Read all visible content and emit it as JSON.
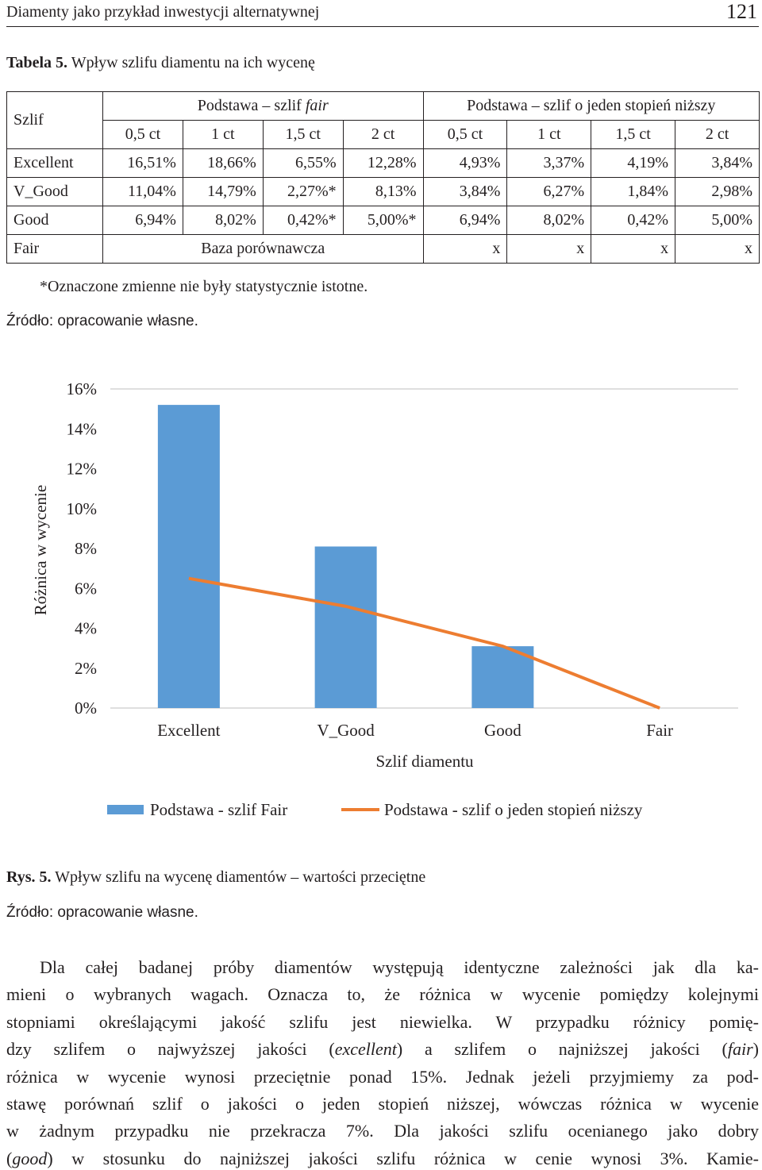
{
  "header": {
    "title": "Diamenty jako przykład inwestycji alternatywnej",
    "page": "121"
  },
  "table": {
    "label": "Tabela 5.",
    "caption": "Wpływ szlifu diamentu na ich wycenę",
    "corner": "Szlif",
    "groups": [
      {
        "text": "Podstawa – szlif ",
        "italic": "fair"
      },
      {
        "text": "Podstawa – szlif o jeden stopień niższy"
      }
    ],
    "columns": [
      "0,5 ct",
      "1 ct",
      "1,5 ct",
      "2 ct",
      "0,5 ct",
      "1 ct",
      "1,5 ct",
      "2 ct"
    ],
    "rows": [
      [
        "Excellent",
        "16,51%",
        "18,66%",
        "6,55%",
        "12,28%",
        "4,93%",
        "3,37%",
        "4,19%",
        "3,84%"
      ],
      [
        "V_Good",
        "11,04%",
        "14,79%",
        "2,27%*",
        "8,13%",
        "3,84%",
        "6,27%",
        "1,84%",
        "2,98%"
      ],
      [
        "Good",
        "6,94%",
        "8,02%",
        "0,42%*",
        "5,00%*",
        "6,94%",
        "8,02%",
        "0,42%",
        "5,00%"
      ],
      [
        "Fair",
        "Baza porównawcza",
        "x",
        "x",
        "x",
        "x"
      ]
    ],
    "note": "*Oznaczone zmienne nie były statystycznie istotne.",
    "source": "Źródło: opracowanie własne."
  },
  "chart_data": {
    "type": "bar",
    "categories": [
      "Excellent",
      "V_Good",
      "Good",
      "Fair"
    ],
    "x_label": "Szlif diamentu",
    "y_label": "Różnica w wycenie",
    "series": [
      {
        "name": "Podstawa - szlif Fair",
        "type": "bar",
        "color": "#5b9bd5",
        "values": [
          15.2,
          8.1,
          3.1,
          0
        ]
      },
      {
        "name": "Podstawa - szlif o jeden stopień niższy",
        "type": "line",
        "color": "#ed7d31",
        "values": [
          6.5,
          5.1,
          3.1,
          0
        ]
      }
    ],
    "ylim": [
      0,
      16
    ],
    "yticks": [
      {
        "value": 0,
        "label": "0%"
      },
      {
        "value": 2,
        "label": "2%"
      },
      {
        "value": 4,
        "label": "4%"
      },
      {
        "value": 6,
        "label": "6%"
      },
      {
        "value": 8,
        "label": "8%"
      },
      {
        "value": 10,
        "label": "10%"
      },
      {
        "value": 12,
        "label": "12%"
      },
      {
        "value": 14,
        "label": "14%"
      },
      {
        "value": 16,
        "label": "16%"
      }
    ],
    "legend": "bottom"
  },
  "figure": {
    "label": "Rys. 5.",
    "caption": "Wpływ szlifu na wycenę diamentów – wartości przeciętne",
    "source": "Źródło: opracowanie własne."
  },
  "paragraph": {
    "lines": [
      [
        {
          "text": "Dla całej badanej próby diamentów występują identyczne zależności jak dla ka-"
        }
      ],
      [
        {
          "text": "mieni o wybranych wagach. Oznacza to, że różnica w wycenie pomiędzy kolejnymi"
        }
      ],
      [
        {
          "text": "stopniami określającymi jakość szlifu jest niewielka. W przypadku różnicy pomię-"
        }
      ],
      [
        {
          "text": "dzy szlifem o najwyższej jakości ("
        },
        {
          "italic": "excellent"
        },
        {
          "text": ") a szlifem o najniższej jakości ("
        },
        {
          "italic": "fair"
        },
        {
          "text": ")"
        }
      ],
      [
        {
          "text": "różnica w wycenie wynosi przeciętnie ponad 15%. Jednak jeżeli przyjmiemy za pod-"
        }
      ],
      [
        {
          "text": "stawę porównań szlif o jakości o jeden stopień niższej, wówczas różnica w wycenie"
        }
      ],
      [
        {
          "text": "w żadnym przypadku nie przekracza 7%. Dla jakości szlifu ocenianego jako dobry"
        }
      ],
      [
        {
          "text": "("
        },
        {
          "italic": "good"
        },
        {
          "text": ") w stosunku do najniższej jakości szlifu różnica w cenie wynosi 3%. Kamie-"
        }
      ]
    ]
  }
}
